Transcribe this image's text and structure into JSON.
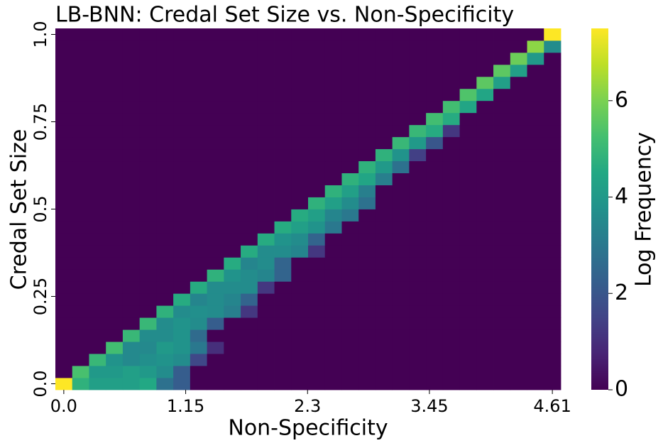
{
  "chart_data": {
    "type": "heatmap",
    "title": "LB-BNN: Credal Set Size vs. Non-Specificity",
    "x_label": "Non-Specificity",
    "y_label": "Credal Set Size",
    "colorbar_label": "Log Frequency",
    "cmap": "viridis",
    "xlim": [
      0,
      4.61
    ],
    "xticks": [
      {
        "value": 0,
        "label": "0.0"
      },
      1.15,
      2.3,
      3.45,
      4.61
    ],
    "ylim": [
      0,
      1
    ],
    "yticks": [
      {
        "value": 0,
        "label": "0.0"
      },
      0.25,
      0.5,
      0.75,
      {
        "value": 1,
        "label": "1.0"
      }
    ],
    "clim": [
      0,
      7.5
    ],
    "cticks": [
      0,
      2,
      4,
      6
    ],
    "z": [
      [
        7.5,
        4.8,
        4.2,
        4.2,
        4.2,
        4.5,
        2.8,
        2.2,
        0,
        0,
        0,
        0,
        0,
        0,
        0,
        0,
        0,
        0,
        0,
        0,
        0,
        0,
        0,
        0,
        0,
        0,
        0,
        0,
        0,
        0
      ],
      [
        0,
        5.3,
        4.0,
        4.0,
        4.2,
        4.0,
        3.6,
        2.2,
        0,
        0,
        0,
        0,
        0,
        0,
        0,
        0,
        0,
        0,
        0,
        0,
        0,
        0,
        0,
        0,
        0,
        0,
        0,
        0,
        0,
        0
      ],
      [
        0,
        0,
        5.0,
        3.8,
        3.5,
        3.7,
        3.8,
        3.6,
        1.6,
        0,
        0,
        0,
        0,
        0,
        0,
        0,
        0,
        0,
        0,
        0,
        0,
        0,
        0,
        0,
        0,
        0,
        0,
        0,
        0,
        0
      ],
      [
        0,
        0,
        0,
        5.2,
        3.5,
        3.5,
        4.0,
        3.8,
        3.0,
        1.0,
        0,
        0,
        0,
        0,
        0,
        0,
        0,
        0,
        0,
        0,
        0,
        0,
        0,
        0,
        0,
        0,
        0,
        0,
        0,
        0
      ],
      [
        0,
        0,
        0,
        0,
        5.0,
        3.6,
        3.6,
        3.8,
        2.6,
        0,
        0,
        0,
        0,
        0,
        0,
        0,
        0,
        0,
        0,
        0,
        0,
        0,
        0,
        0,
        0,
        0,
        0,
        0,
        0,
        0
      ],
      [
        0,
        0,
        0,
        0,
        0,
        5.0,
        3.6,
        3.8,
        3.6,
        2.2,
        0,
        0,
        0,
        0,
        0,
        0,
        0,
        0,
        0,
        0,
        0,
        0,
        0,
        0,
        0,
        0,
        0,
        0,
        0,
        0
      ],
      [
        0,
        0,
        0,
        0,
        0,
        0,
        4.8,
        3.6,
        3.7,
        3.6,
        3.2,
        1.2,
        0,
        0,
        0,
        0,
        0,
        0,
        0,
        0,
        0,
        0,
        0,
        0,
        0,
        0,
        0,
        0,
        0,
        0
      ],
      [
        0,
        0,
        0,
        0,
        0,
        0,
        0,
        4.6,
        3.4,
        3.6,
        3.4,
        2.4,
        0,
        0,
        0,
        0,
        0,
        0,
        0,
        0,
        0,
        0,
        0,
        0,
        0,
        0,
        0,
        0,
        0,
        0
      ],
      [
        0,
        0,
        0,
        0,
        0,
        0,
        0,
        0,
        4.6,
        3.6,
        3.6,
        3.6,
        1.2,
        0,
        0,
        0,
        0,
        0,
        0,
        0,
        0,
        0,
        0,
        0,
        0,
        0,
        0,
        0,
        0,
        0
      ],
      [
        0,
        0,
        0,
        0,
        0,
        0,
        0,
        0,
        0,
        4.8,
        3.8,
        3.6,
        3.4,
        2.4,
        0,
        0,
        0,
        0,
        0,
        0,
        0,
        0,
        0,
        0,
        0,
        0,
        0,
        0,
        0,
        0
      ],
      [
        0,
        0,
        0,
        0,
        0,
        0,
        0,
        0,
        0,
        0,
        4.6,
        3.4,
        3.6,
        2.4,
        0,
        0,
        0,
        0,
        0,
        0,
        0,
        0,
        0,
        0,
        0,
        0,
        0,
        0,
        0,
        0
      ],
      [
        0,
        0,
        0,
        0,
        0,
        0,
        0,
        0,
        0,
        0,
        0,
        4.6,
        3.6,
        3.6,
        3.4,
        1.2,
        0,
        0,
        0,
        0,
        0,
        0,
        0,
        0,
        0,
        0,
        0,
        0,
        0,
        0
      ],
      [
        0,
        0,
        0,
        0,
        0,
        0,
        0,
        0,
        0,
        0,
        0,
        0,
        4.6,
        3.8,
        3.6,
        2.4,
        0,
        0,
        0,
        0,
        0,
        0,
        0,
        0,
        0,
        0,
        0,
        0,
        0,
        0
      ],
      [
        0,
        0,
        0,
        0,
        0,
        0,
        0,
        0,
        0,
        0,
        0,
        0,
        0,
        4.6,
        4.2,
        3.8,
        3.0,
        0,
        0,
        0,
        0,
        0,
        0,
        0,
        0,
        0,
        0,
        0,
        0,
        0
      ],
      [
        0,
        0,
        0,
        0,
        0,
        0,
        0,
        0,
        0,
        0,
        0,
        0,
        0,
        0,
        4.6,
        4.2,
        3.4,
        3.0,
        0,
        0,
        0,
        0,
        0,
        0,
        0,
        0,
        0,
        0,
        0,
        0
      ],
      [
        0,
        0,
        0,
        0,
        0,
        0,
        0,
        0,
        0,
        0,
        0,
        0,
        0,
        0,
        0,
        4.8,
        4.2,
        3.6,
        2.8,
        0,
        0,
        0,
        0,
        0,
        0,
        0,
        0,
        0,
        0,
        0
      ],
      [
        0,
        0,
        0,
        0,
        0,
        0,
        0,
        0,
        0,
        0,
        0,
        0,
        0,
        0,
        0,
        0,
        4.8,
        4.2,
        3.2,
        0,
        0,
        0,
        0,
        0,
        0,
        0,
        0,
        0,
        0,
        0
      ],
      [
        0,
        0,
        0,
        0,
        0,
        0,
        0,
        0,
        0,
        0,
        0,
        0,
        0,
        0,
        0,
        0,
        0,
        4.8,
        4.4,
        3.2,
        0,
        0,
        0,
        0,
        0,
        0,
        0,
        0,
        0,
        0
      ],
      [
        0,
        0,
        0,
        0,
        0,
        0,
        0,
        0,
        0,
        0,
        0,
        0,
        0,
        0,
        0,
        0,
        0,
        0,
        4.8,
        4.0,
        2.8,
        0,
        0,
        0,
        0,
        0,
        0,
        0,
        0,
        0
      ],
      [
        0,
        0,
        0,
        0,
        0,
        0,
        0,
        0,
        0,
        0,
        0,
        0,
        0,
        0,
        0,
        0,
        0,
        0,
        0,
        4.8,
        3.8,
        1.4,
        0,
        0,
        0,
        0,
        0,
        0,
        0,
        0
      ],
      [
        0,
        0,
        0,
        0,
        0,
        0,
        0,
        0,
        0,
        0,
        0,
        0,
        0,
        0,
        0,
        0,
        0,
        0,
        0,
        0,
        5.0,
        4.0,
        2.0,
        0,
        0,
        0,
        0,
        0,
        0,
        0
      ],
      [
        0,
        0,
        0,
        0,
        0,
        0,
        0,
        0,
        0,
        0,
        0,
        0,
        0,
        0,
        0,
        0,
        0,
        0,
        0,
        0,
        0,
        5.0,
        4.6,
        1.2,
        0,
        0,
        0,
        0,
        0,
        0
      ],
      [
        0,
        0,
        0,
        0,
        0,
        0,
        0,
        0,
        0,
        0,
        0,
        0,
        0,
        0,
        0,
        0,
        0,
        0,
        0,
        0,
        0,
        0,
        5.2,
        4.6,
        0,
        0,
        0,
        0,
        0,
        0
      ],
      [
        0,
        0,
        0,
        0,
        0,
        0,
        0,
        0,
        0,
        0,
        0,
        0,
        0,
        0,
        0,
        0,
        0,
        0,
        0,
        0,
        0,
        0,
        0,
        5.2,
        4.4,
        0,
        0,
        0,
        0,
        0
      ],
      [
        0,
        0,
        0,
        0,
        0,
        0,
        0,
        0,
        0,
        0,
        0,
        0,
        0,
        0,
        0,
        0,
        0,
        0,
        0,
        0,
        0,
        0,
        0,
        0,
        5.4,
        4.4,
        0,
        0,
        0,
        0
      ],
      [
        0,
        0,
        0,
        0,
        0,
        0,
        0,
        0,
        0,
        0,
        0,
        0,
        0,
        0,
        0,
        0,
        0,
        0,
        0,
        0,
        0,
        0,
        0,
        0,
        0,
        5.6,
        4.2,
        0,
        0,
        0
      ],
      [
        0,
        0,
        0,
        0,
        0,
        0,
        0,
        0,
        0,
        0,
        0,
        0,
        0,
        0,
        0,
        0,
        0,
        0,
        0,
        0,
        0,
        0,
        0,
        0,
        0,
        0,
        5.6,
        4.2,
        0,
        0
      ],
      [
        0,
        0,
        0,
        0,
        0,
        0,
        0,
        0,
        0,
        0,
        0,
        0,
        0,
        0,
        0,
        0,
        0,
        0,
        0,
        0,
        0,
        0,
        0,
        0,
        0,
        0,
        0,
        5.8,
        4.0,
        0
      ],
      [
        0,
        0,
        0,
        0,
        0,
        0,
        0,
        0,
        0,
        0,
        0,
        0,
        0,
        0,
        0,
        0,
        0,
        0,
        0,
        0,
        0,
        0,
        0,
        0,
        0,
        0,
        0,
        0,
        6.2,
        3.6
      ],
      [
        0,
        0,
        0,
        0,
        0,
        0,
        0,
        0,
        0,
        0,
        0,
        0,
        0,
        0,
        0,
        0,
        0,
        0,
        0,
        0,
        0,
        0,
        0,
        0,
        0,
        0,
        0,
        0,
        0,
        7.5
      ]
    ]
  }
}
